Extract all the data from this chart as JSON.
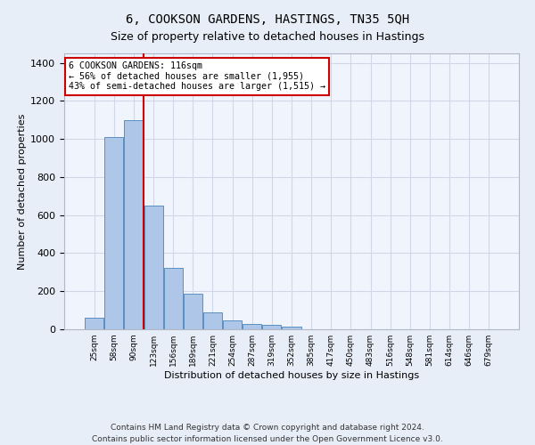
{
  "title": "6, COOKSON GARDENS, HASTINGS, TN35 5QH",
  "subtitle": "Size of property relative to detached houses in Hastings",
  "xlabel": "Distribution of detached houses by size in Hastings",
  "ylabel": "Number of detached properties",
  "categories": [
    "25sqm",
    "58sqm",
    "90sqm",
    "123sqm",
    "156sqm",
    "189sqm",
    "221sqm",
    "254sqm",
    "287sqm",
    "319sqm",
    "352sqm",
    "385sqm",
    "417sqm",
    "450sqm",
    "483sqm",
    "516sqm",
    "548sqm",
    "581sqm",
    "614sqm",
    "646sqm",
    "679sqm"
  ],
  "values": [
    62,
    1010,
    1100,
    650,
    325,
    188,
    90,
    47,
    30,
    25,
    15,
    0,
    0,
    0,
    0,
    0,
    0,
    0,
    0,
    0,
    0
  ],
  "bar_color": "#aec6e8",
  "bar_edge_color": "#5a8fc2",
  "vline_color": "#cc0000",
  "annotation_text": "6 COOKSON GARDENS: 116sqm\n← 56% of detached houses are smaller (1,955)\n43% of semi-detached houses are larger (1,515) →",
  "annotation_box_color": "#ffffff",
  "annotation_box_edge_color": "#cc0000",
  "ylim": [
    0,
    1450
  ],
  "yticks": [
    0,
    200,
    400,
    600,
    800,
    1000,
    1200,
    1400
  ],
  "grid_color": "#d0d8e8",
  "background_color": "#e8eef8",
  "plot_bg_color": "#f0f4fc",
  "footer": "Contains HM Land Registry data © Crown copyright and database right 2024.\nContains public sector information licensed under the Open Government Licence v3.0.",
  "title_fontsize": 10,
  "subtitle_fontsize": 9,
  "footer_fontsize": 6.5
}
